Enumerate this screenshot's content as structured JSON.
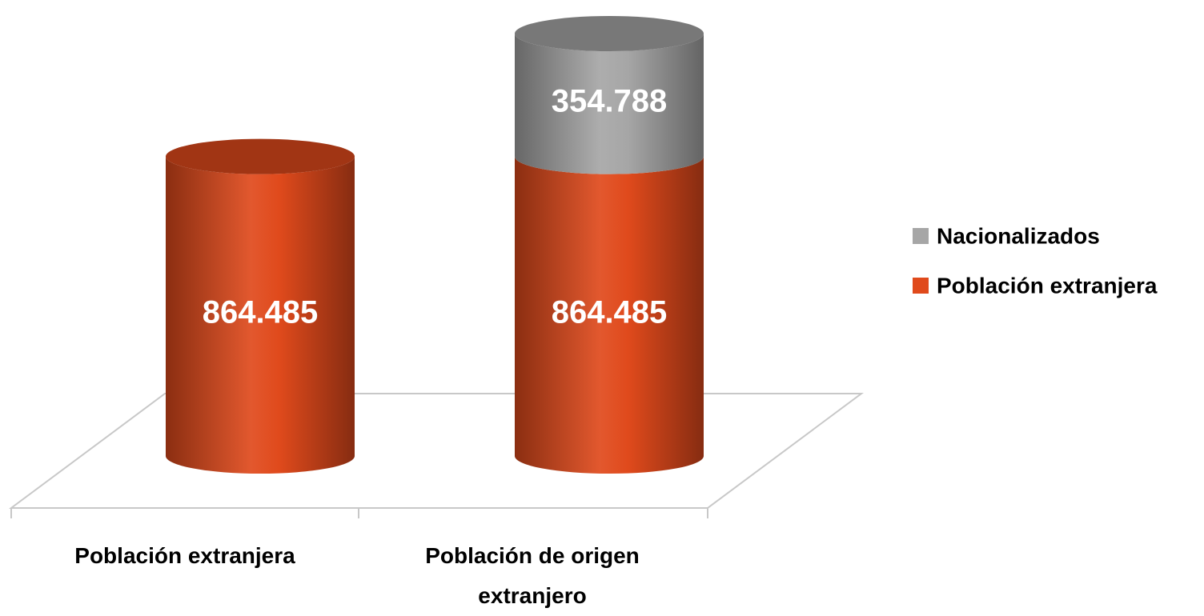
{
  "chart_data": {
    "type": "bar3d-stacked",
    "categories": [
      "Población extranjera",
      "Población de origen extranjero"
    ],
    "series": [
      {
        "name": "Población extranjera",
        "color": "#e04a1c",
        "values": [
          864485,
          864485
        ],
        "value_labels": [
          "864.485",
          "864.485"
        ]
      },
      {
        "name": "Nacionalizados",
        "color": "#a6a6a6",
        "values": [
          null,
          354788
        ],
        "value_labels": [
          null,
          "354.788"
        ]
      }
    ],
    "legend": "right"
  }
}
